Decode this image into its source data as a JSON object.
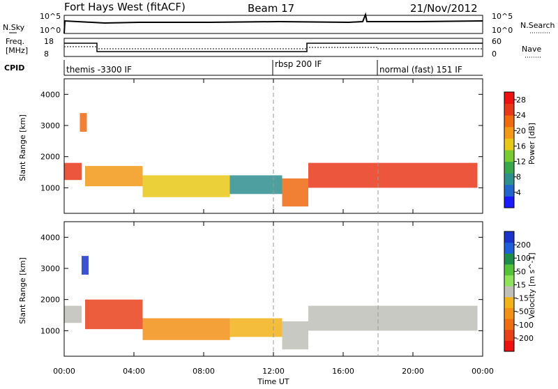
{
  "header": {
    "station": "Fort Hays West (fitACF)",
    "beam": "Beam 17",
    "date": "21/Nov/2012"
  },
  "status_panels": {
    "nsky_label": "N.Sky",
    "nsky_ticks": [
      "10^5",
      "10^0"
    ],
    "nsearch_label": "N.Search",
    "nsearch_ticks": [
      "10^5",
      "10^0"
    ],
    "freq_label_1": "Freq.",
    "freq_label_2": "[MHz]",
    "freq_ticks": [
      "18",
      "8"
    ],
    "nave_label": "Nave",
    "nave_ticks": [
      "60",
      "0"
    ],
    "cpid_label": "CPID",
    "cpid_segments": [
      {
        "label": "themis -3300 IF",
        "start_hour": 0
      },
      {
        "label": "rbsp 200 IF",
        "start_hour": 12
      },
      {
        "label": "normal (fast) 151 IF",
        "start_hour": 18
      }
    ]
  },
  "axes": {
    "x_label": "Time UT",
    "x_ticks": [
      "00:00",
      "04:00",
      "08:00",
      "12:00",
      "16:00",
      "20:00",
      "00:00"
    ],
    "y_label": "Slant Range [km]",
    "y_ticks": [
      "1000",
      "2000",
      "3000",
      "4000"
    ]
  },
  "colorbars": {
    "power_label": "Power [dB]",
    "power_ticks": [
      "4",
      "8",
      "12",
      "16",
      "20",
      "24",
      "28"
    ],
    "power_colors": [
      "#1a1aff",
      "#2266cc",
      "#2f8f8f",
      "#3aa84a",
      "#77cc33",
      "#e8c817",
      "#f29918",
      "#f06a10",
      "#e8381a",
      "#ee1111"
    ],
    "velocity_label": "Velocity [m s^-1]",
    "velocity_ticks": [
      "200",
      "100",
      "50",
      "15",
      "-15",
      "-50",
      "-100",
      "-200"
    ],
    "velocity_colors": [
      "#1a33cc",
      "#1f5fd8",
      "#1f8c4a",
      "#55c23a",
      "#8ee25c",
      "#c0c0b8",
      "#f2b31a",
      "#f29118",
      "#ee6c12",
      "#e8411a",
      "#ee1111"
    ]
  },
  "chart_data": {
    "type": "heatmap",
    "title": "Fort Hays West (fitACF) Beam 17 21/Nov/2012",
    "xlabel": "Time UT",
    "ylabel": "Slant Range [km]",
    "xlim": [
      0,
      24
    ],
    "ylim": [
      180,
      4500
    ],
    "panels": [
      {
        "name": "Power",
        "units": "dB",
        "colorbar_range": [
          0,
          30
        ],
        "echo_regions": [
          {
            "t_start": 0.0,
            "t_end": 1.0,
            "range_min": 1250,
            "range_max": 1800,
            "value": 26
          },
          {
            "t_start": 0.9,
            "t_end": 1.3,
            "range_min": 2800,
            "range_max": 3400,
            "value": 22
          },
          {
            "t_start": 1.2,
            "t_end": 4.5,
            "range_min": 1050,
            "range_max": 1700,
            "value": 18
          },
          {
            "t_start": 4.5,
            "t_end": 9.5,
            "range_min": 700,
            "range_max": 1400,
            "value": 16
          },
          {
            "t_start": 9.5,
            "t_end": 12.5,
            "range_min": 800,
            "range_max": 1400,
            "value": 8
          },
          {
            "t_start": 12.5,
            "t_end": 14.0,
            "range_min": 400,
            "range_max": 1300,
            "value": 22
          },
          {
            "t_start": 14.0,
            "t_end": 23.7,
            "range_min": 1000,
            "range_max": 1800,
            "value": 26
          }
        ]
      },
      {
        "name": "Velocity",
        "units": "m s^-1",
        "colorbar_range": [
          -200,
          200
        ],
        "echo_regions": [
          {
            "t_start": 0.0,
            "t_end": 1.0,
            "range_min": 1250,
            "range_max": 1800,
            "value": 0
          },
          {
            "t_start": 1.0,
            "t_end": 1.4,
            "range_min": 2800,
            "range_max": 3400,
            "value": 200
          },
          {
            "t_start": 1.2,
            "t_end": 4.5,
            "range_min": 1050,
            "range_max": 2000,
            "value": -150
          },
          {
            "t_start": 4.5,
            "t_end": 9.5,
            "range_min": 700,
            "range_max": 1400,
            "value": -60
          },
          {
            "t_start": 9.5,
            "t_end": 12.5,
            "range_min": 800,
            "range_max": 1400,
            "value": -40
          },
          {
            "t_start": 12.5,
            "t_end": 14.0,
            "range_min": 400,
            "range_max": 1300,
            "value": 0
          },
          {
            "t_start": 14.0,
            "t_end": 23.7,
            "range_min": 1000,
            "range_max": 1800,
            "value": 0
          }
        ]
      }
    ]
  }
}
